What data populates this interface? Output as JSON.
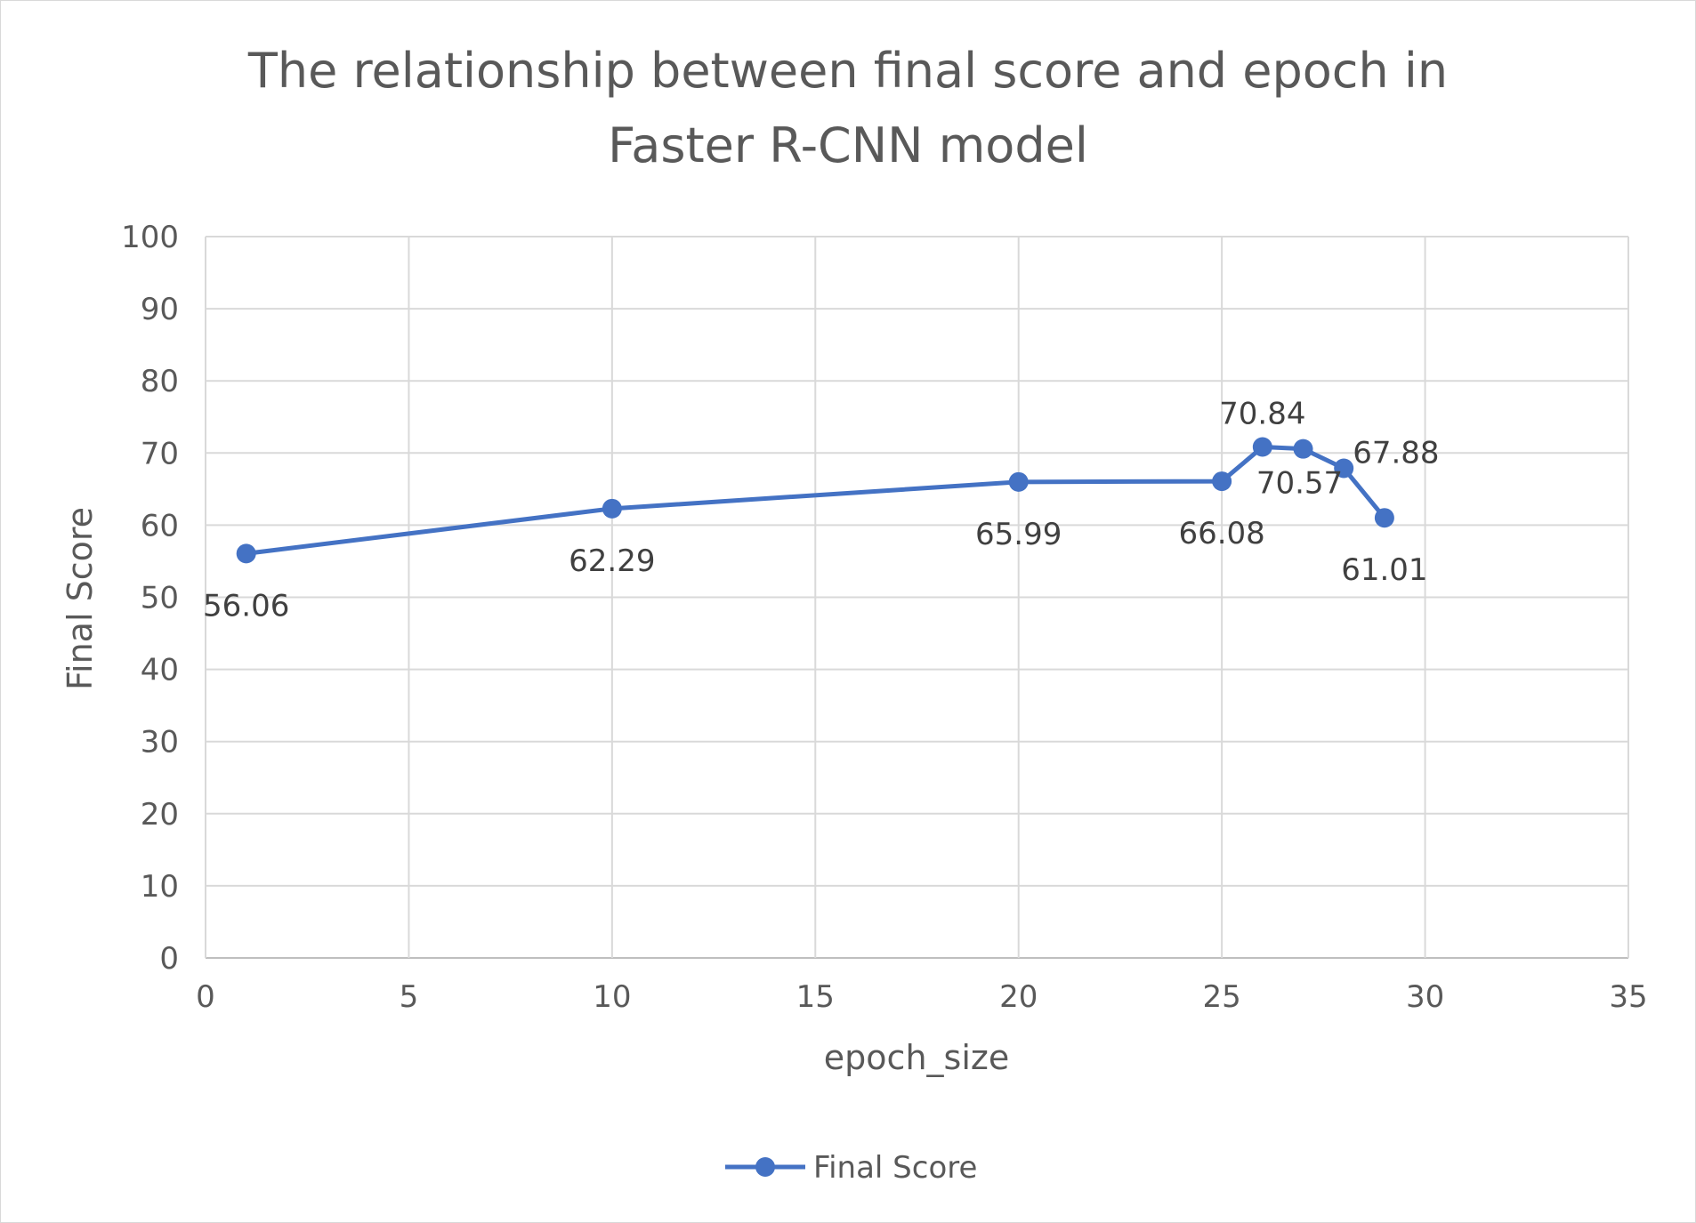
{
  "chart_data": {
    "type": "scatter",
    "title_lines": [
      "The relationship between final score and epoch in",
      "Faster R-CNN model"
    ],
    "xlabel": "epoch_size",
    "ylabel": "Final Score",
    "xlim": [
      0,
      35
    ],
    "ylim": [
      0,
      100
    ],
    "x_ticks": [
      0,
      5,
      10,
      15,
      20,
      25,
      30,
      35
    ],
    "y_ticks": [
      0,
      10,
      20,
      30,
      40,
      50,
      60,
      70,
      80,
      90,
      100
    ],
    "grid": true,
    "legend_position": "bottom",
    "series": [
      {
        "name": "Final Score",
        "color": "#4472c4",
        "marker": "circle",
        "lines": true,
        "x": [
          1,
          10,
          20,
          25,
          26,
          27,
          28,
          29
        ],
        "y": [
          56.06,
          62.29,
          65.99,
          66.08,
          70.84,
          70.57,
          67.88,
          61.01
        ],
        "labels": [
          "56.06",
          "62.29",
          "65.99",
          "66.08",
          "70.84",
          "70.57",
          "67.88",
          "61.01"
        ]
      }
    ]
  }
}
